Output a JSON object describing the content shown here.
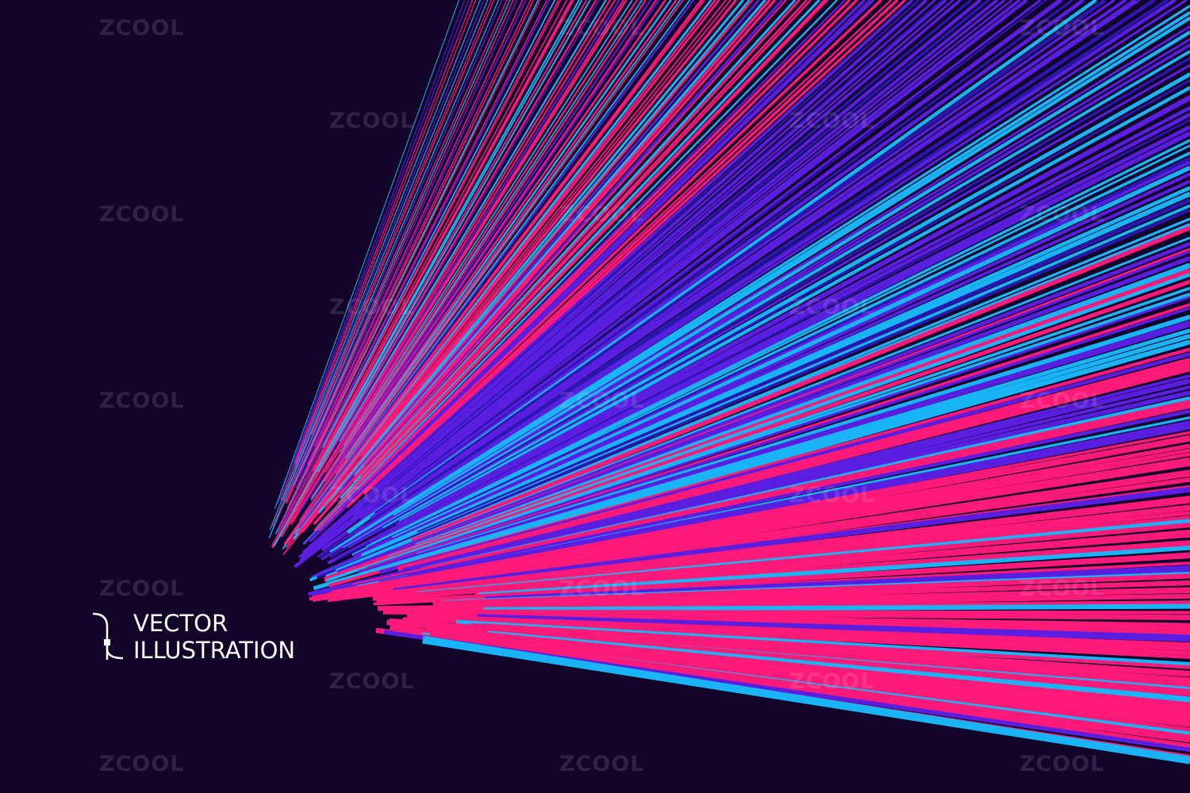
{
  "caption": {
    "line1": "VECTOR",
    "line2": "ILLUSTRATION"
  },
  "watermark": "ZCOOL",
  "colors": {
    "background": "#13042a",
    "pink": "#ff1a7a",
    "purple": "#5a1ee0",
    "cyan": "#19b4f5",
    "blue": "#2b17b0",
    "text": "#ffffff"
  }
}
